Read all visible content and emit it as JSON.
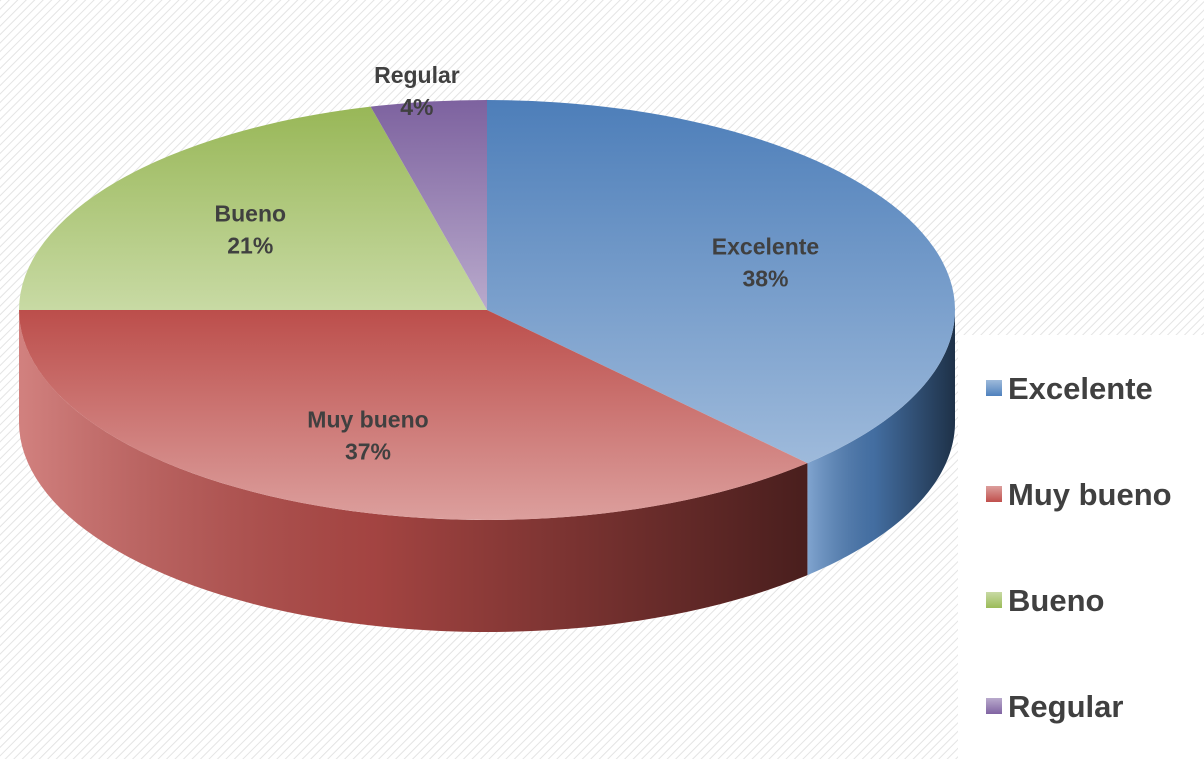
{
  "chart_data": {
    "type": "pie",
    "title": "",
    "series": [
      {
        "name": "Excelente",
        "value": 38,
        "label": "38%",
        "color": "#4F81BD"
      },
      {
        "name": "Muy bueno",
        "value": 37,
        "label": "37%",
        "color": "#C0504D"
      },
      {
        "name": "Bueno",
        "value": 21,
        "label": "21%",
        "color": "#9BBB59"
      },
      {
        "name": "Regular",
        "value": 4,
        "label": "4%",
        "color": "#8064A2"
      }
    ],
    "legend_position": "right",
    "three_d": true
  }
}
